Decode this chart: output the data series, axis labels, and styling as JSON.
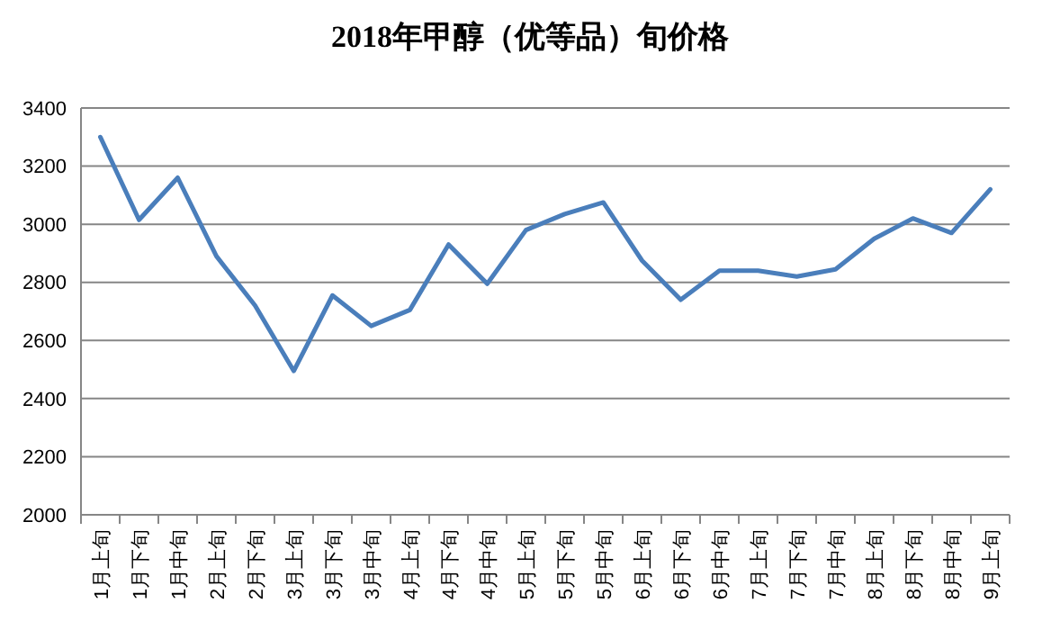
{
  "chart_data": {
    "type": "line",
    "title": "2018年甲醇（优等品）旬价格",
    "categories": [
      "1月上旬",
      "1月下旬",
      "1月中旬",
      "2月上旬",
      "2月下旬",
      "3月上旬",
      "3月下旬",
      "3月中旬",
      "4月上旬",
      "4月下旬",
      "4月中旬",
      "5月上旬",
      "5月下旬",
      "5月中旬",
      "6月上旬",
      "6月下旬",
      "6月中旬",
      "7月上旬",
      "7月下旬",
      "7月中旬",
      "8月上旬",
      "8月下旬",
      "8月中旬",
      "9月上旬"
    ],
    "series": [
      {
        "color": "#4a7ebb",
        "values": [
          3300,
          3015,
          3160,
          2890,
          2720,
          2495,
          2755,
          2650,
          2705,
          2930,
          2795,
          2980,
          3035,
          3075,
          2875,
          2740,
          2840,
          2840,
          2820,
          2845,
          2950,
          3020,
          2970,
          3120
        ]
      }
    ],
    "ylim": [
      2000,
      3400
    ],
    "yticks": [
      2000,
      2200,
      2400,
      2600,
      2800,
      3000,
      3200,
      3400
    ],
    "grid": "y",
    "marker": "none",
    "line_style": "solid"
  }
}
